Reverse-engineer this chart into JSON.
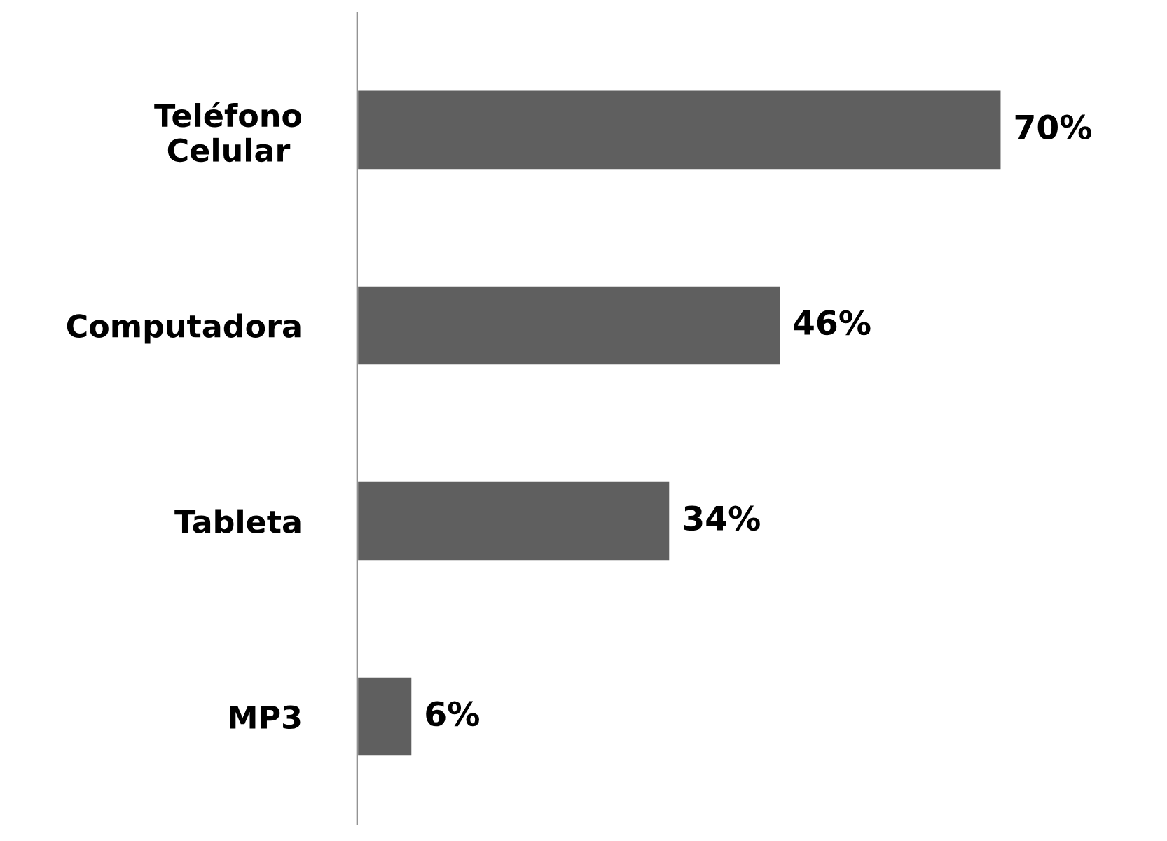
{
  "chart_data": {
    "type": "bar",
    "orientation": "horizontal",
    "categories": [
      "Teléfono\nCelular",
      "Computadora",
      "Tableta",
      "MP3"
    ],
    "values": [
      70,
      46,
      34,
      6
    ],
    "color": "#5f5f5f",
    "value_labels": [
      "70%",
      "46%",
      "34%",
      "6%"
    ],
    "tick_labels": "y",
    "grid": false,
    "legend": false
  }
}
